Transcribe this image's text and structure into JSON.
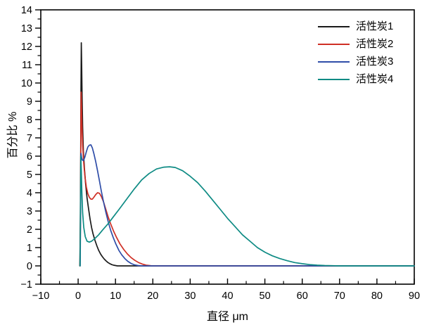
{
  "figure": {
    "background": "#ffffff"
  },
  "chart_data": {
    "type": "line",
    "title": "",
    "xlabel": "直径 μm",
    "ylabel": "百分比 %",
    "xlim": [
      -10,
      90
    ],
    "ylim": [
      -1,
      14
    ],
    "grid": false,
    "legend_position": "top-right",
    "axis_color": "#000000",
    "x_major_ticks": [
      -10,
      0,
      10,
      20,
      30,
      40,
      50,
      60,
      70,
      80,
      90
    ],
    "x_minor_ticks": [
      -5,
      5,
      15,
      25,
      35,
      45,
      55,
      65,
      75,
      85
    ],
    "y_major_ticks": [
      -1,
      0,
      1,
      2,
      3,
      4,
      5,
      6,
      7,
      8,
      9,
      10,
      11,
      12,
      13,
      14
    ],
    "y_minor_ticks": [
      -0.5,
      0.5,
      1.5,
      2.5,
      3.5,
      4.5,
      5.5,
      6.5,
      7.5,
      8.5,
      9.5,
      10.5,
      11.5,
      12.5,
      13.5
    ],
    "series": [
      {
        "name": "活性炭1",
        "color": "#1a1a1a",
        "peak": {
          "x": 0.85,
          "y": 12.2
        },
        "points": [
          [
            0.45,
            0
          ],
          [
            0.55,
            1.5
          ],
          [
            0.65,
            5.0
          ],
          [
            0.75,
            9.5
          ],
          [
            0.85,
            12.2
          ],
          [
            0.95,
            11.0
          ],
          [
            1.05,
            9.3
          ],
          [
            1.2,
            7.6
          ],
          [
            1.4,
            6.3
          ],
          [
            1.7,
            5.3
          ],
          [
            2.0,
            4.5
          ],
          [
            2.4,
            3.7
          ],
          [
            2.8,
            3.1
          ],
          [
            3.2,
            2.55
          ],
          [
            3.6,
            2.1
          ],
          [
            4.0,
            1.75
          ],
          [
            4.5,
            1.4
          ],
          [
            5.0,
            1.1
          ],
          [
            5.5,
            0.85
          ],
          [
            6.0,
            0.65
          ],
          [
            6.5,
            0.5
          ],
          [
            7.0,
            0.37
          ],
          [
            7.5,
            0.27
          ],
          [
            8.0,
            0.18
          ],
          [
            8.5,
            0.12
          ],
          [
            9.0,
            0.07
          ],
          [
            9.5,
            0.04
          ],
          [
            10.0,
            0.02
          ],
          [
            10.5,
            0
          ],
          [
            90,
            0
          ]
        ]
      },
      {
        "name": "活性炭2",
        "color": "#cf2f25",
        "peak": {
          "x": 0.8,
          "y": 9.5
        },
        "points": [
          [
            0.5,
            0
          ],
          [
            0.6,
            2.0
          ],
          [
            0.7,
            6.0
          ],
          [
            0.8,
            9.5
          ],
          [
            0.9,
            8.8
          ],
          [
            1.0,
            7.8
          ],
          [
            1.2,
            6.6
          ],
          [
            1.5,
            5.6
          ],
          [
            1.8,
            4.9
          ],
          [
            2.2,
            4.3
          ],
          [
            2.6,
            3.95
          ],
          [
            3.0,
            3.75
          ],
          [
            3.4,
            3.65
          ],
          [
            3.8,
            3.65
          ],
          [
            4.2,
            3.75
          ],
          [
            4.7,
            3.9
          ],
          [
            5.2,
            4.0
          ],
          [
            5.7,
            3.97
          ],
          [
            6.2,
            3.8
          ],
          [
            6.8,
            3.5
          ],
          [
            7.4,
            3.1
          ],
          [
            8.0,
            2.7
          ],
          [
            8.7,
            2.3
          ],
          [
            9.5,
            1.9
          ],
          [
            10.3,
            1.55
          ],
          [
            11.2,
            1.2
          ],
          [
            12.2,
            0.9
          ],
          [
            13.2,
            0.65
          ],
          [
            14.2,
            0.45
          ],
          [
            15.2,
            0.3
          ],
          [
            16.2,
            0.18
          ],
          [
            17.2,
            0.1
          ],
          [
            18.2,
            0.04
          ],
          [
            19.5,
            0.01
          ],
          [
            20.5,
            0
          ],
          [
            90,
            0
          ]
        ]
      },
      {
        "name": "活性炭3",
        "color": "#2f4da8",
        "peak": {
          "x": 3.4,
          "y": 6.6
        },
        "points": [
          [
            0.55,
            0
          ],
          [
            0.65,
            3.0
          ],
          [
            0.75,
            6.15
          ],
          [
            0.9,
            5.95
          ],
          [
            1.1,
            5.8
          ],
          [
            1.4,
            5.75
          ],
          [
            1.8,
            5.95
          ],
          [
            2.2,
            6.25
          ],
          [
            2.6,
            6.5
          ],
          [
            3.0,
            6.6
          ],
          [
            3.4,
            6.62
          ],
          [
            3.8,
            6.45
          ],
          [
            4.2,
            6.15
          ],
          [
            4.7,
            5.7
          ],
          [
            5.2,
            5.2
          ],
          [
            5.7,
            4.65
          ],
          [
            6.2,
            4.1
          ],
          [
            6.8,
            3.5
          ],
          [
            7.4,
            2.95
          ],
          [
            8.0,
            2.45
          ],
          [
            8.7,
            1.95
          ],
          [
            9.4,
            1.55
          ],
          [
            10.1,
            1.2
          ],
          [
            10.9,
            0.85
          ],
          [
            11.7,
            0.6
          ],
          [
            12.5,
            0.4
          ],
          [
            13.3,
            0.25
          ],
          [
            14.2,
            0.13
          ],
          [
            15.0,
            0.06
          ],
          [
            16.0,
            0.02
          ],
          [
            17.0,
            0
          ],
          [
            90,
            0
          ]
        ]
      },
      {
        "name": "活性炭4",
        "color": "#0e8b84",
        "peak": {
          "x": 24.5,
          "y": 5.4
        },
        "points": [
          [
            0.5,
            0
          ],
          [
            0.6,
            2.5
          ],
          [
            0.7,
            6.0
          ],
          [
            0.85,
            5.2
          ],
          [
            1.0,
            4.0
          ],
          [
            1.2,
            2.9
          ],
          [
            1.5,
            2.1
          ],
          [
            1.9,
            1.6
          ],
          [
            2.4,
            1.35
          ],
          [
            3.0,
            1.3
          ],
          [
            3.6,
            1.35
          ],
          [
            4.5,
            1.5
          ],
          [
            5.5,
            1.7
          ],
          [
            6.5,
            1.95
          ],
          [
            8.0,
            2.3
          ],
          [
            9.5,
            2.7
          ],
          [
            11,
            3.1
          ],
          [
            13,
            3.65
          ],
          [
            15,
            4.2
          ],
          [
            17,
            4.7
          ],
          [
            19,
            5.05
          ],
          [
            21,
            5.3
          ],
          [
            23,
            5.4
          ],
          [
            24.5,
            5.42
          ],
          [
            26,
            5.38
          ],
          [
            28,
            5.2
          ],
          [
            30,
            4.9
          ],
          [
            32,
            4.55
          ],
          [
            34,
            4.1
          ],
          [
            36,
            3.6
          ],
          [
            38,
            3.1
          ],
          [
            40,
            2.6
          ],
          [
            42,
            2.15
          ],
          [
            44,
            1.7
          ],
          [
            46,
            1.35
          ],
          [
            48,
            1.0
          ],
          [
            50,
            0.75
          ],
          [
            52,
            0.55
          ],
          [
            54,
            0.4
          ],
          [
            56,
            0.28
          ],
          [
            58,
            0.18
          ],
          [
            60,
            0.12
          ],
          [
            62,
            0.07
          ],
          [
            64,
            0.04
          ],
          [
            66,
            0.02
          ],
          [
            68,
            0.01
          ],
          [
            70,
            0
          ],
          [
            90,
            0
          ]
        ]
      }
    ]
  }
}
